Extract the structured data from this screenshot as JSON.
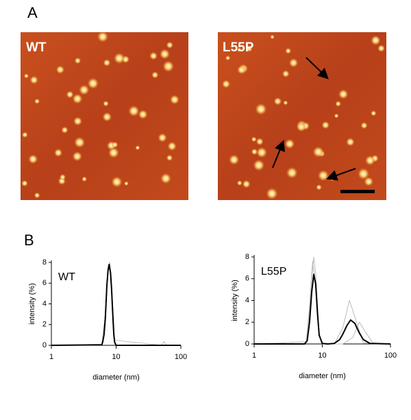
{
  "panels": {
    "a": {
      "label": "A",
      "images": [
        {
          "label": "WT"
        },
        {
          "label": "L55P"
        }
      ]
    },
    "b": {
      "label": "B"
    }
  },
  "chart_data": [
    {
      "type": "line",
      "annotation": "WT",
      "xlabel": "diameter (nm)",
      "ylabel": "intensity (%)",
      "xscale": "log",
      "xlim": [
        1,
        100
      ],
      "xticks": [
        1,
        10,
        100
      ],
      "ylim": [
        0,
        8
      ],
      "yticks": [
        0,
        2,
        4,
        6,
        8
      ],
      "series": [
        {
          "color": "#bbbbbb",
          "x": [
            1,
            6,
            6.8,
            7.5,
            8,
            8.5,
            9.5,
            50,
            55,
            60,
            100
          ],
          "values": [
            0,
            0.1,
            3,
            7.6,
            8,
            6,
            0.5,
            0,
            0.35,
            0,
            0
          ]
        },
        {
          "color": "#000000",
          "x": [
            1,
            6,
            6.2,
            6.5,
            6.8,
            7.2,
            7.5,
            7.8,
            8.2,
            8.5,
            8.8,
            9.2,
            9.5,
            10,
            100
          ],
          "values": [
            0,
            0.05,
            0.3,
            1,
            2.5,
            5.8,
            7.2,
            7.8,
            7,
            5.5,
            3.5,
            1.1,
            0.3,
            0,
            0
          ]
        }
      ]
    },
    {
      "type": "line",
      "annotation": "L55P",
      "xlabel": "diameter (nm)",
      "ylabel": "intensity (%)",
      "xscale": "log",
      "xlim": [
        1,
        100
      ],
      "xticks": [
        1,
        10,
        100
      ],
      "ylim": [
        0,
        8
      ],
      "yticks": [
        0,
        2,
        4,
        6,
        8
      ],
      "series": [
        {
          "color": "#bbbbbb",
          "x": [
            1,
            6,
            7,
            7.5,
            8,
            9,
            10,
            15,
            20,
            25,
            30,
            40,
            100
          ],
          "values": [
            0,
            0.2,
            6,
            8,
            6.5,
            1,
            0,
            0,
            1.5,
            4,
            2.5,
            0.1,
            0
          ]
        },
        {
          "color": "#bbbbbb",
          "x": [
            1,
            5.8,
            6.5,
            7.2,
            8,
            9,
            10,
            20,
            28,
            35,
            42,
            55,
            100
          ],
          "values": [
            0,
            0.2,
            3.5,
            7.6,
            5.5,
            0.8,
            0,
            0,
            0.6,
            2,
            1.2,
            0.1,
            0
          ]
        },
        {
          "color": "#000000",
          "x": [
            1,
            5.5,
            6,
            6.5,
            7,
            7.5,
            8,
            8.5,
            9,
            10,
            12,
            15,
            18,
            20,
            23,
            26,
            30,
            35,
            40,
            50,
            100
          ],
          "values": [
            0,
            0,
            0.3,
            2,
            4.8,
            6.4,
            5.5,
            2.8,
            0.8,
            0.05,
            0,
            0.05,
            0.4,
            0.9,
            1.7,
            2.2,
            1.9,
            1,
            0.4,
            0.05,
            0
          ]
        }
      ]
    }
  ]
}
